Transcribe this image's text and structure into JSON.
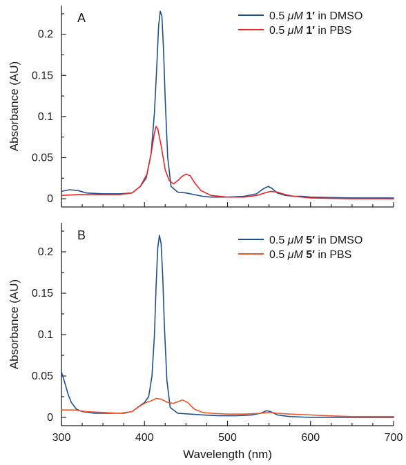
{
  "chart_data": [
    {
      "type": "line",
      "panel_label": "A",
      "title": "",
      "xlabel": "",
      "ylabel": "Absorbance (AU)",
      "xlim": [
        300,
        700
      ],
      "ylim": [
        -0.01,
        0.235
      ],
      "x_ticks": [],
      "y_ticks": [
        0,
        0.05,
        0.1,
        0.15,
        0.2
      ],
      "y_tick_labels": [
        "0",
        "0.05",
        "0.1",
        "0.15",
        "0.2"
      ],
      "grid": false,
      "legend_position": "top-right",
      "series": [
        {
          "legend": {
            "prefix": "0.5 ",
            "unit": "μM",
            "compound": "1′",
            "suffix": " in DMSO"
          },
          "color": "#1f4e8c",
          "points": [
            [
              300,
              0.009
            ],
            [
              310,
              0.011
            ],
            [
              320,
              0.01
            ],
            [
              330,
              0.007
            ],
            [
              350,
              0.006
            ],
            [
              370,
              0.006
            ],
            [
              385,
              0.007
            ],
            [
              395,
              0.015
            ],
            [
              402,
              0.025
            ],
            [
              408,
              0.055
            ],
            [
              412,
              0.105
            ],
            [
              415,
              0.165
            ],
            [
              417,
              0.21
            ],
            [
              419,
              0.228
            ],
            [
              421,
              0.222
            ],
            [
              423,
              0.18
            ],
            [
              425,
              0.12
            ],
            [
              428,
              0.05
            ],
            [
              432,
              0.015
            ],
            [
              440,
              0.008
            ],
            [
              450,
              0.007
            ],
            [
              460,
              0.005
            ],
            [
              470,
              0.003
            ],
            [
              480,
              0.002
            ],
            [
              500,
              0.002
            ],
            [
              520,
              0.003
            ],
            [
              535,
              0.006
            ],
            [
              543,
              0.012
            ],
            [
              549,
              0.015
            ],
            [
              553,
              0.013
            ],
            [
              560,
              0.007
            ],
            [
              570,
              0.004
            ],
            [
              580,
              0.003
            ],
            [
              590,
              0.003
            ],
            [
              600,
              0.002
            ],
            [
              650,
              0.001
            ],
            [
              700,
              0.001
            ]
          ]
        },
        {
          "legend": {
            "prefix": "0.5 ",
            "unit": "μM",
            "compound": "1′",
            "suffix": " in PBS"
          },
          "color": "#e8262a",
          "points": [
            [
              300,
              0.004
            ],
            [
              320,
              0.005
            ],
            [
              350,
              0.005
            ],
            [
              370,
              0.005
            ],
            [
              385,
              0.007
            ],
            [
              395,
              0.015
            ],
            [
              403,
              0.03
            ],
            [
              408,
              0.055
            ],
            [
              412,
              0.08
            ],
            [
              414,
              0.088
            ],
            [
              416,
              0.085
            ],
            [
              420,
              0.065
            ],
            [
              425,
              0.035
            ],
            [
              430,
              0.022
            ],
            [
              435,
              0.018
            ],
            [
              440,
              0.022
            ],
            [
              445,
              0.027
            ],
            [
              450,
              0.03
            ],
            [
              455,
              0.028
            ],
            [
              460,
              0.02
            ],
            [
              468,
              0.01
            ],
            [
              480,
              0.004
            ],
            [
              500,
              0.002
            ],
            [
              520,
              0.002
            ],
            [
              535,
              0.004
            ],
            [
              545,
              0.007
            ],
            [
              552,
              0.009
            ],
            [
              560,
              0.008
            ],
            [
              570,
              0.005
            ],
            [
              580,
              0.003
            ],
            [
              600,
              0.001
            ],
            [
              650,
              0.0
            ],
            [
              700,
              0.0
            ]
          ]
        }
      ]
    },
    {
      "type": "line",
      "panel_label": "B",
      "title": "",
      "xlabel": "Wavelength (nm)",
      "ylabel": "Absorbance (AU)",
      "xlim": [
        300,
        700
      ],
      "ylim": [
        -0.01,
        0.235
      ],
      "x_ticks": [
        300,
        400,
        500,
        600,
        700
      ],
      "x_tick_labels": [
        "300",
        "400",
        "500",
        "600",
        "700"
      ],
      "y_ticks": [
        0,
        0.05,
        0.1,
        0.15,
        0.2
      ],
      "y_tick_labels": [
        "0",
        "0.05",
        "0.1",
        "0.15",
        "0.2"
      ],
      "grid": false,
      "legend_position": "top-right",
      "series": [
        {
          "legend": {
            "prefix": "0.5 ",
            "unit": "μM",
            "compound": "5′",
            "suffix": " in DMSO"
          },
          "color": "#1f4e8c",
          "points": [
            [
              300,
              0.055
            ],
            [
              304,
              0.042
            ],
            [
              308,
              0.028
            ],
            [
              312,
              0.018
            ],
            [
              318,
              0.01
            ],
            [
              325,
              0.007
            ],
            [
              340,
              0.005
            ],
            [
              360,
              0.005
            ],
            [
              375,
              0.005
            ],
            [
              385,
              0.007
            ],
            [
              393,
              0.013
            ],
            [
              400,
              0.018
            ],
            [
              405,
              0.025
            ],
            [
              409,
              0.05
            ],
            [
              412,
              0.1
            ],
            [
              414,
              0.16
            ],
            [
              416,
              0.205
            ],
            [
              418,
              0.22
            ],
            [
              420,
              0.21
            ],
            [
              422,
              0.17
            ],
            [
              424,
              0.11
            ],
            [
              427,
              0.045
            ],
            [
              431,
              0.012
            ],
            [
              440,
              0.005
            ],
            [
              455,
              0.004
            ],
            [
              470,
              0.003
            ],
            [
              490,
              0.002
            ],
            [
              510,
              0.002
            ],
            [
              530,
              0.003
            ],
            [
              540,
              0.005
            ],
            [
              547,
              0.008
            ],
            [
              552,
              0.007
            ],
            [
              560,
              0.003
            ],
            [
              575,
              0.001
            ],
            [
              600,
              0.0
            ],
            [
              650,
              0.0
            ],
            [
              700,
              0.0
            ]
          ]
        },
        {
          "legend": {
            "prefix": "0.5 ",
            "unit": "μM",
            "compound": "5′",
            "suffix": " in PBS"
          },
          "color": "#f0562a",
          "points": [
            [
              300,
              0.009
            ],
            [
              315,
              0.009
            ],
            [
              330,
              0.007
            ],
            [
              350,
              0.006
            ],
            [
              370,
              0.005
            ],
            [
              385,
              0.007
            ],
            [
              395,
              0.014
            ],
            [
              402,
              0.018
            ],
            [
              408,
              0.02
            ],
            [
              414,
              0.023
            ],
            [
              420,
              0.022
            ],
            [
              428,
              0.018
            ],
            [
              435,
              0.017
            ],
            [
              440,
              0.019
            ],
            [
              446,
              0.021
            ],
            [
              452,
              0.018
            ],
            [
              460,
              0.01
            ],
            [
              470,
              0.006
            ],
            [
              480,
              0.005
            ],
            [
              500,
              0.004
            ],
            [
              520,
              0.004
            ],
            [
              540,
              0.005
            ],
            [
              552,
              0.006
            ],
            [
              560,
              0.005
            ],
            [
              575,
              0.004
            ],
            [
              600,
              0.003
            ],
            [
              620,
              0.002
            ],
            [
              650,
              0.001
            ],
            [
              700,
              0.001
            ]
          ]
        }
      ]
    }
  ]
}
